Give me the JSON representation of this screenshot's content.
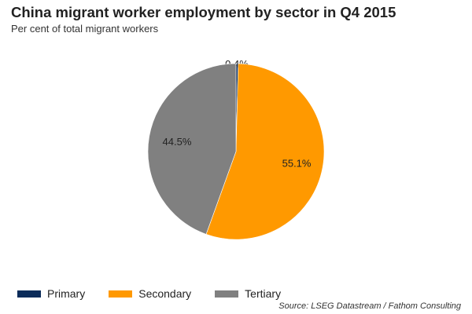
{
  "chart_data": {
    "type": "pie",
    "title": "China migrant worker employment by sector in Q4 2015",
    "subtitle": "Per cent of total migrant workers",
    "slices": [
      {
        "label": "Primary",
        "value": 0.4,
        "data_label": "0.4%",
        "color": "#0b2c5a"
      },
      {
        "label": "Secondary",
        "value": 55.1,
        "data_label": "55.1%",
        "color": "#ff9900"
      },
      {
        "label": "Tertiary",
        "value": 44.5,
        "data_label": "44.5%",
        "color": "#808080"
      }
    ],
    "start": "12 o'clock",
    "direction": "clockwise",
    "legend_position": "bottom-left",
    "source": "Source: LSEG Datastream / Fathom Consulting"
  }
}
